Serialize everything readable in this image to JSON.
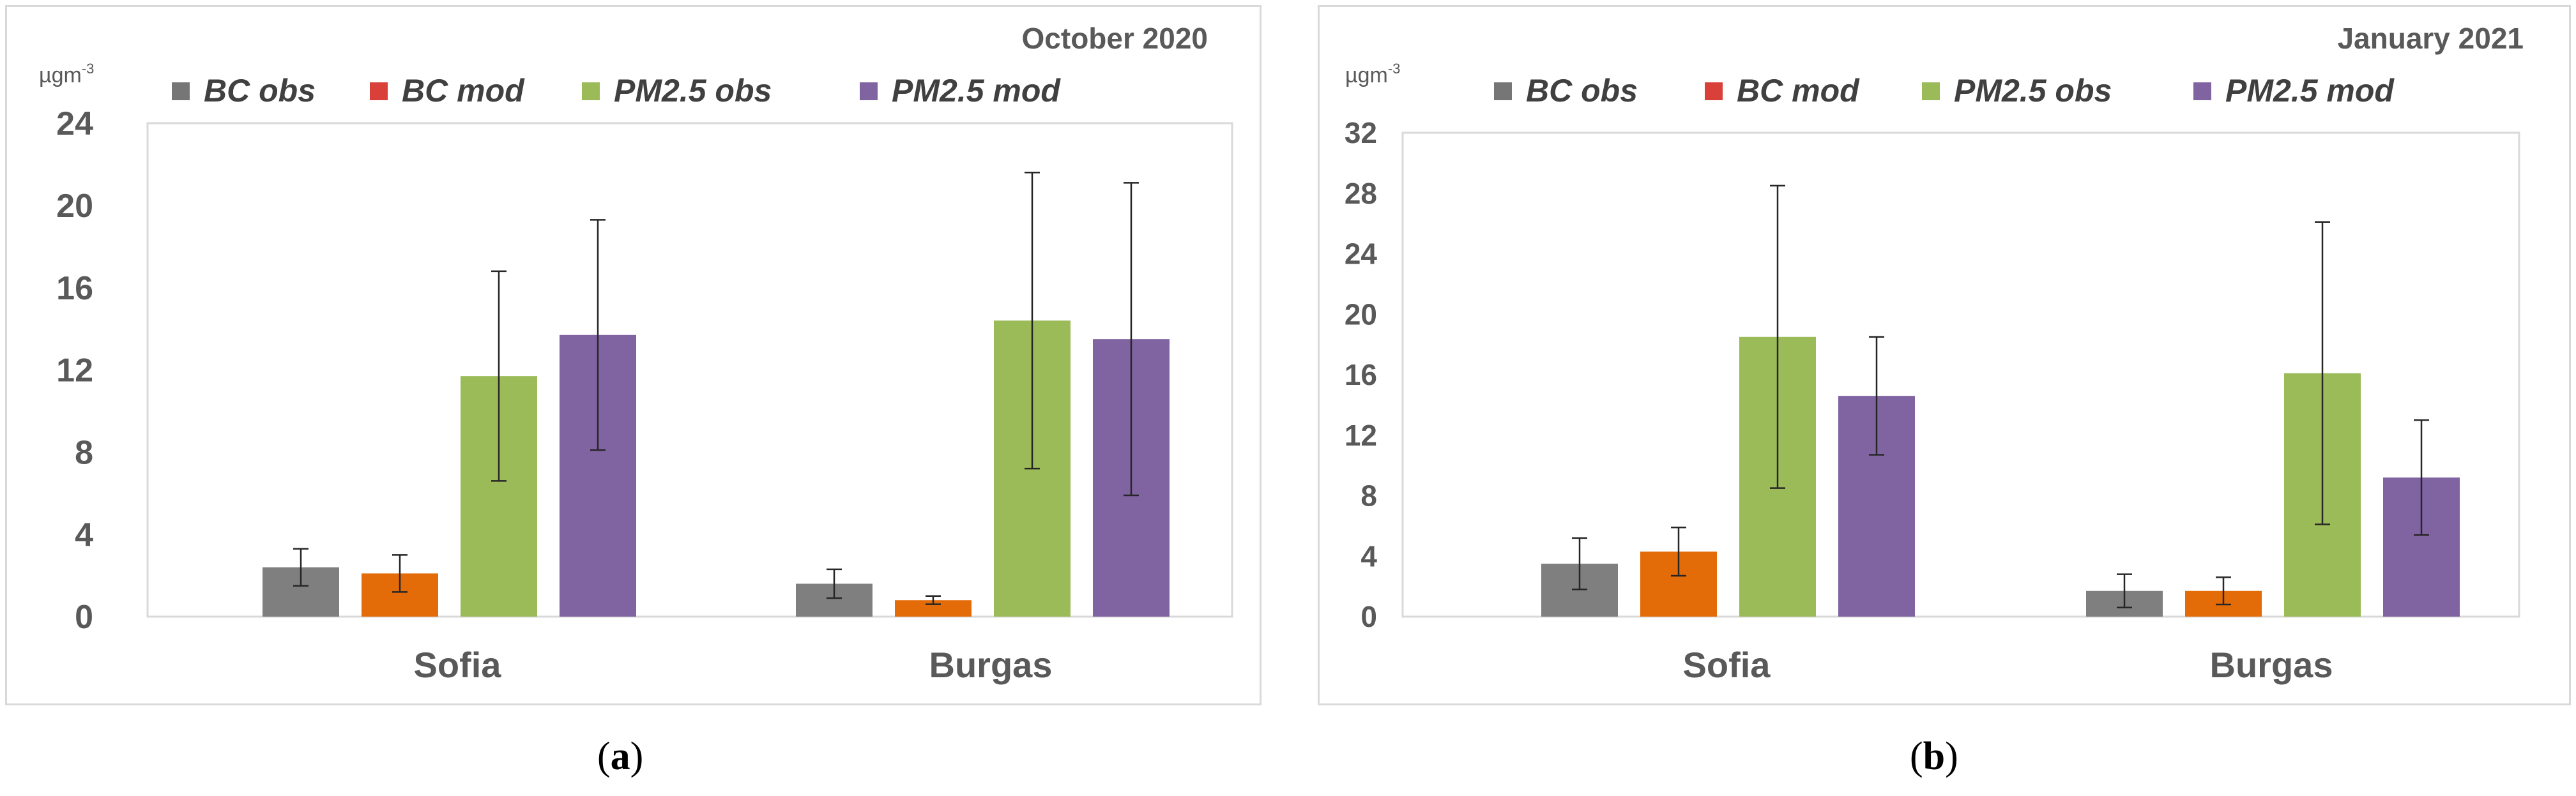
{
  "chart_data": [
    {
      "type": "bar",
      "panel_label": "a",
      "title": "October 2020",
      "ylabel": "µgm",
      "ylabel_sup": "-3",
      "ylim": [
        0,
        24
      ],
      "yticks": [
        0,
        4,
        8,
        12,
        16,
        20,
        24
      ],
      "categories": [
        "Sofia",
        "Burgas"
      ],
      "legend_position": "top",
      "grid": false,
      "series": [
        {
          "name": "BC obs",
          "color": "#7f7f7f",
          "legend_color": "#767676",
          "values": [
            2.4,
            1.6
          ],
          "errors": [
            0.9,
            0.7
          ]
        },
        {
          "name": "BC mod",
          "color": "#e36c09",
          "legend_color": "#d9403a",
          "values": [
            2.1,
            0.8
          ],
          "errors": [
            0.9,
            0.2
          ]
        },
        {
          "name": "PM2.5 obs",
          "color": "#9bbb59",
          "legend_color": "#9bbb59",
          "values": [
            11.7,
            14.4
          ],
          "errors": [
            5.1,
            7.2
          ]
        },
        {
          "name": "PM2.5 mod",
          "color": "#8064a2",
          "legend_color": "#8064a2",
          "values": [
            13.7,
            13.5
          ],
          "errors": [
            5.6,
            7.6
          ]
        }
      ]
    },
    {
      "type": "bar",
      "panel_label": "b",
      "title": "January 2021",
      "ylabel": "µgm",
      "ylabel_sup": "-3",
      "ylim": [
        0,
        32
      ],
      "yticks": [
        0,
        4,
        8,
        12,
        16,
        20,
        24,
        28,
        32
      ],
      "categories": [
        "Sofia",
        "Burgas"
      ],
      "legend_position": "top",
      "grid": false,
      "series": [
        {
          "name": "BC obs",
          "color": "#7f7f7f",
          "legend_color": "#767676",
          "values": [
            3.5,
            1.7
          ],
          "errors": [
            1.7,
            1.1
          ]
        },
        {
          "name": "BC mod",
          "color": "#e36c09",
          "legend_color": "#d9403a",
          "values": [
            4.3,
            1.7
          ],
          "errors": [
            1.6,
            0.9
          ]
        },
        {
          "name": "PM2.5 obs",
          "color": "#9bbb59",
          "legend_color": "#9bbb59",
          "values": [
            18.5,
            16.1
          ],
          "errors": [
            10.0,
            10.0
          ]
        },
        {
          "name": "PM2.5 mod",
          "color": "#8064a2",
          "legend_color": "#8064a2",
          "values": [
            14.6,
            9.2
          ],
          "errors": [
            3.9,
            3.8
          ]
        }
      ]
    }
  ]
}
